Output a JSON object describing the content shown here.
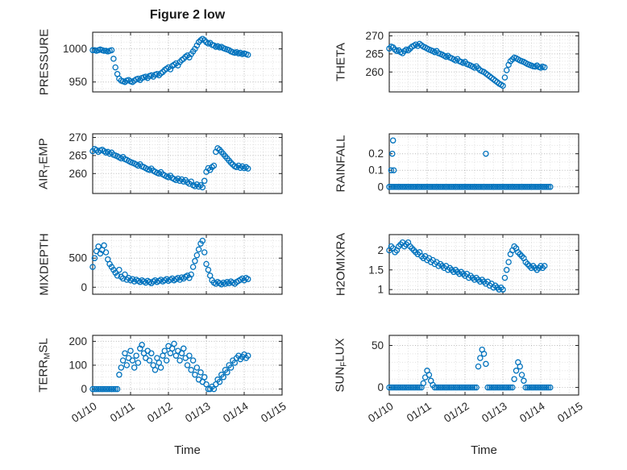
{
  "figure": {
    "title": "Figure 2 low",
    "xlabel": "Time",
    "accent_color": "#0072BD",
    "x_axis": {
      "lim": [
        0,
        5
      ],
      "tick_vals": [
        0,
        1,
        2,
        3,
        4,
        5
      ],
      "tick_labels": [
        "01/10",
        "01/11",
        "01/12",
        "01/13",
        "01/14",
        "01/15"
      ],
      "minor_step": 0.25
    }
  },
  "chart_data": [
    {
      "type": "scatter",
      "name": "pressure",
      "ylabel_parts": [
        [
          "PRESSURE",
          false
        ]
      ],
      "ylim": [
        935,
        1025
      ],
      "ytick_vals": [
        950,
        1000
      ],
      "ytick_labels": [
        "950",
        "1000"
      ],
      "yminor_step": 10,
      "series": [
        {
          "x0": 0,
          "dx": 0.05,
          "y": [
            998,
            998,
            997,
            998,
            999,
            998,
            997,
            997,
            996,
            997,
            998,
            985,
            972,
            962,
            955,
            952,
            951,
            950,
            952,
            953,
            951,
            950,
            952,
            954,
            955,
            953,
            956,
            957,
            958,
            956,
            959,
            960,
            958,
            961,
            962,
            960,
            963,
            965,
            968,
            970,
            972,
            969,
            974,
            976,
            978,
            975,
            980,
            983,
            985,
            988,
            990,
            987,
            992,
            996,
            1000,
            1005,
            1010,
            1013,
            1015,
            1013,
            1010,
            1008,
            1009,
            1006,
            1005,
            1003,
            1004,
            1002,
            1003,
            1001,
            1000,
            999,
            998,
            996,
            995,
            994,
            995,
            993,
            994,
            992,
            993,
            992,
            991
          ]
        }
      ]
    },
    {
      "type": "scatter",
      "name": "theta",
      "ylabel_parts": [
        [
          "THETA",
          false
        ]
      ],
      "ylim": [
        254.5,
        271
      ],
      "ytick_vals": [
        260,
        265,
        270
      ],
      "ytick_labels": [
        "260",
        "265",
        "270"
      ],
      "yminor_step": 1,
      "series": [
        {
          "x0": 0,
          "dx": 0.05,
          "y": [
            266.5,
            267,
            266.8,
            266.2,
            265.8,
            266,
            265.5,
            265.2,
            265.8,
            266.2,
            266,
            266.5,
            267,
            267.3,
            267.6,
            267.2,
            267.8,
            267.4,
            267,
            266.8,
            266.5,
            266.2,
            266,
            265.8,
            265.5,
            265.8,
            265.2,
            265,
            264.8,
            264.5,
            264.2,
            264.5,
            264,
            263.8,
            263.5,
            263.2,
            263.6,
            263,
            262.8,
            262.5,
            262.8,
            262.2,
            262,
            261.8,
            261.5,
            261.2,
            261.6,
            261,
            260.5,
            260.2,
            260,
            259.6,
            259.2,
            258.8,
            258.4,
            258,
            257.6,
            257.2,
            256.8,
            256.5,
            256.2,
            258.5,
            260.5,
            262,
            263,
            263.5,
            264,
            263.8,
            263.5,
            263.2,
            263,
            262.8,
            262.5,
            262.2,
            262,
            261.8,
            261.6,
            261.5,
            261.8,
            261.4,
            261.2,
            261.5,
            261.3
          ]
        }
      ]
    },
    {
      "type": "scatter",
      "name": "air-temp",
      "ylabel_parts": [
        [
          "AIR",
          false
        ],
        [
          "T",
          true
        ],
        [
          "EMP",
          false
        ]
      ],
      "ylim": [
        254.5,
        271
      ],
      "ytick_vals": [
        260,
        265,
        270
      ],
      "ytick_labels": [
        "260",
        "265",
        "270"
      ],
      "yminor_step": 1,
      "series": [
        {
          "x0": 0,
          "dx": 0.05,
          "y": [
            266.2,
            266.8,
            266.5,
            266,
            266.4,
            266.6,
            266.2,
            265.8,
            266,
            265.5,
            265.8,
            265.2,
            265,
            264.8,
            264.5,
            264.2,
            264.6,
            264,
            263.8,
            263.5,
            263.2,
            263,
            262.8,
            262.5,
            262.2,
            262.6,
            262,
            261.8,
            261.5,
            261.2,
            261,
            261.4,
            260.8,
            260.5,
            260.2,
            260,
            260.4,
            259.8,
            259.5,
            259.2,
            259,
            259.4,
            258.8,
            258.5,
            258.2,
            258.6,
            258,
            258.4,
            257.8,
            258.2,
            257.6,
            257.2,
            257.8,
            256.8,
            256.5,
            257,
            256.4,
            256.8,
            256.2,
            258,
            260.5,
            261.5,
            261,
            261.8,
            262.2,
            266,
            267,
            266.6,
            266,
            265.4,
            264.8,
            264.2,
            263.6,
            263,
            262.5,
            262,
            261.8,
            262.2,
            261.6,
            262,
            261.5,
            261.8,
            261.4
          ]
        }
      ]
    },
    {
      "type": "scatter",
      "name": "rainfall",
      "ylabel_parts": [
        [
          "RAINFALL",
          false
        ]
      ],
      "ylim": [
        -0.04,
        0.32
      ],
      "ytick_vals": [
        0,
        0.1,
        0.2
      ],
      "ytick_labels": [
        "0",
        "0.1",
        "0.2"
      ],
      "yminor_step": 0.05,
      "series": [
        {
          "x0": 0,
          "dx": 0.05,
          "y": [
            0,
            0,
            0,
            0,
            0,
            0,
            0,
            0,
            0,
            0,
            0,
            0,
            0,
            0,
            0,
            0,
            0,
            0,
            0,
            0,
            0,
            0,
            0,
            0,
            0,
            0,
            0,
            0,
            0,
            0,
            0,
            0,
            0,
            0,
            0,
            0,
            0,
            0,
            0,
            0,
            0,
            0,
            0,
            0,
            0,
            0,
            0,
            0,
            0,
            0,
            0,
            0,
            0,
            0,
            0,
            0,
            0,
            0,
            0,
            0,
            0,
            0,
            0,
            0,
            0,
            0,
            0,
            0,
            0,
            0,
            0,
            0,
            0,
            0,
            0,
            0,
            0,
            0,
            0,
            0,
            0,
            0,
            0,
            0,
            0,
            0
          ]
        },
        {
          "x": [
            0.05,
            0.08,
            0.1,
            0.12,
            2.55
          ],
          "y": [
            0.1,
            0.2,
            0.28,
            0.1,
            0.2
          ]
        }
      ]
    },
    {
      "type": "scatter",
      "name": "mixdepth",
      "ylabel_parts": [
        [
          "MIXDEPTH",
          false
        ]
      ],
      "ylim": [
        -120,
        905
      ],
      "ytick_vals": [
        0,
        500
      ],
      "ytick_labels": [
        "0",
        "500"
      ],
      "yminor_step": 100,
      "series": [
        {
          "x0": 0,
          "dx": 0.05,
          "y": [
            350,
            500,
            620,
            700,
            580,
            640,
            720,
            600,
            480,
            400,
            350,
            300,
            250,
            200,
            300,
            180,
            150,
            220,
            130,
            160,
            120,
            140,
            100,
            130,
            110,
            90,
            120,
            100,
            80,
            110,
            90,
            70,
            100,
            120,
            90,
            110,
            130,
            100,
            120,
            140,
            110,
            130,
            150,
            120,
            140,
            160,
            130,
            170,
            150,
            180,
            200,
            160,
            220,
            350,
            450,
            550,
            650,
            750,
            800,
            600,
            400,
            300,
            200,
            120,
            80,
            60,
            90,
            70,
            50,
            80,
            60,
            90,
            70,
            100,
            80,
            60,
            90,
            110,
            130,
            150,
            120,
            160,
            140
          ]
        }
      ]
    },
    {
      "type": "scatter",
      "name": "h2omixra",
      "ylabel_parts": [
        [
          "H2OMIXRA",
          false
        ]
      ],
      "ylim": [
        0.88,
        2.4
      ],
      "ytick_vals": [
        1,
        1.5,
        2
      ],
      "ytick_labels": [
        "1",
        "1.5",
        "2"
      ],
      "yminor_step": 0.1,
      "series": [
        {
          "x0": 0,
          "dx": 0.05,
          "y": [
            2,
            2.1,
            2.05,
            1.95,
            2,
            2.1,
            2.15,
            2.2,
            2.1,
            2.15,
            2.2,
            2.1,
            2.05,
            2,
            1.95,
            1.9,
            1.95,
            1.85,
            1.8,
            1.85,
            1.75,
            1.8,
            1.7,
            1.75,
            1.65,
            1.7,
            1.6,
            1.65,
            1.6,
            1.55,
            1.6,
            1.5,
            1.55,
            1.5,
            1.45,
            1.5,
            1.45,
            1.4,
            1.45,
            1.4,
            1.35,
            1.4,
            1.3,
            1.35,
            1.3,
            1.25,
            1.3,
            1.25,
            1.2,
            1.25,
            1.2,
            1.15,
            1.2,
            1.1,
            1.15,
            1.05,
            1.1,
            1.05,
            1,
            1.05,
            1,
            1.3,
            1.5,
            1.7,
            1.9,
            2,
            2.1,
            2.05,
            1.95,
            1.9,
            1.85,
            1.8,
            1.7,
            1.65,
            1.6,
            1.55,
            1.6,
            1.55,
            1.5,
            1.55,
            1.6,
            1.55,
            1.6
          ]
        }
      ]
    },
    {
      "type": "scatter",
      "name": "terr-msl",
      "ylabel_parts": [
        [
          "TERR",
          false
        ],
        [
          "M",
          true
        ],
        [
          "SL",
          false
        ]
      ],
      "ylim": [
        -25,
        225
      ],
      "ytick_vals": [
        0,
        100,
        200
      ],
      "ytick_labels": [
        "0",
        "100",
        "200"
      ],
      "yminor_step": 25,
      "series": [
        {
          "x0": 0,
          "dx": 0.05,
          "y": [
            0,
            0,
            0,
            0,
            0,
            0,
            0,
            0,
            0,
            0,
            0,
            0,
            0,
            0,
            60,
            90,
            120,
            150,
            100,
            130,
            160,
            120,
            90,
            140,
            110,
            170,
            185,
            150,
            130,
            160,
            120,
            150,
            100,
            80,
            130,
            110,
            90,
            140,
            160,
            120,
            180,
            150,
            170,
            190,
            140,
            160,
            120,
            150,
            170,
            130,
            100,
            140,
            80,
            120,
            60,
            90,
            40,
            70,
            30,
            50,
            20,
            0,
            0,
            10,
            0,
            20,
            40,
            30,
            60,
            50,
            80,
            70,
            100,
            90,
            120,
            110,
            130,
            140,
            125,
            135,
            145,
            130,
            140
          ]
        }
      ]
    },
    {
      "type": "scatter",
      "name": "sun-flux",
      "ylabel_parts": [
        [
          "SUN",
          false
        ],
        [
          "F",
          true
        ],
        [
          "LUX",
          false
        ]
      ],
      "ylim": [
        -9,
        62
      ],
      "ytick_vals": [
        0,
        50
      ],
      "ytick_labels": [
        "0",
        "50"
      ],
      "yminor_step": 10,
      "series": [
        {
          "x0": 0,
          "dx": 0.05,
          "y": [
            0,
            0,
            0,
            0,
            0,
            0,
            0,
            0,
            0,
            0,
            0,
            0,
            0,
            0,
            0,
            0,
            0,
            0,
            5,
            12,
            20,
            15,
            8,
            3,
            0,
            0,
            0,
            0,
            0,
            0,
            0,
            0,
            0,
            0,
            0,
            0,
            0,
            0,
            0,
            0,
            0,
            0,
            0,
            0,
            0,
            0,
            0,
            25,
            35,
            45,
            40,
            28,
            0,
            0,
            0,
            0,
            0,
            0,
            0,
            0,
            0,
            0,
            0,
            0,
            0,
            0,
            10,
            20,
            30,
            25,
            15,
            8,
            0,
            0,
            0,
            0,
            0,
            0,
            0,
            0,
            0,
            0,
            0,
            0,
            0,
            0
          ]
        }
      ]
    }
  ]
}
